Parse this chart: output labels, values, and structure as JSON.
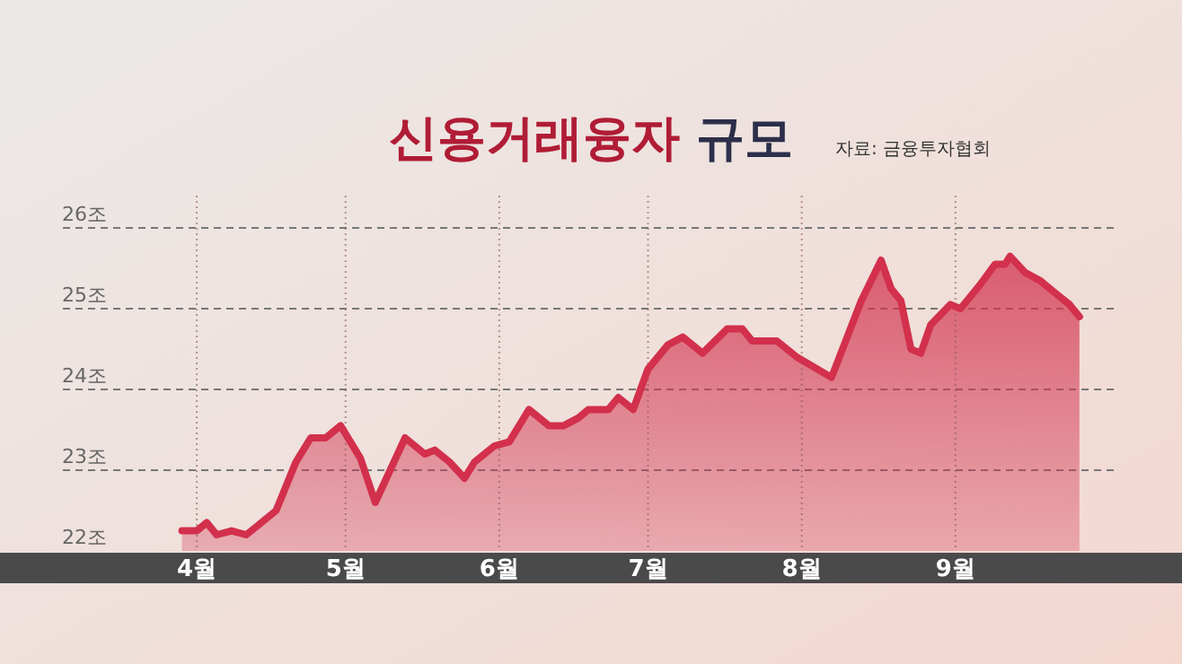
{
  "chart_data": {
    "type": "area",
    "title": "신용거래융자 규모",
    "annotations": [
      "자료: 금융투자협회"
    ],
    "x": [
      "--03-29",
      "--04-01",
      "--04-03",
      "--04-05",
      "--04-08",
      "--04-11",
      "--04-13",
      "--04-17",
      "--04-21",
      "--04-24",
      "--04-27",
      "--04-30",
      "--05-04",
      "--05-07",
      "--05-13",
      "--05-17",
      "--05-19",
      "--05-22",
      "--05-25",
      "--05-27",
      "--05-31",
      "--06-03",
      "--06-07",
      "--06-11",
      "--06-14",
      "--06-17",
      "--06-19",
      "--06-23",
      "--06-25",
      "--06-28",
      "--07-01",
      "--07-05",
      "--07-08",
      "--07-12",
      "--07-17",
      "--07-20",
      "--07-22",
      "--07-27",
      "--07-31",
      "--08-07",
      "--08-13",
      "--08-17",
      "--08-19",
      "--08-21",
      "--08-23",
      "--08-25",
      "--08-27",
      "--08-31",
      "--09-02",
      "--09-06",
      "--09-09",
      "--09-11",
      "--09-12",
      "--09-15",
      "--09-18",
      "--09-21",
      "--09-24",
      "--09-26"
    ],
    "series": [
      {
        "color": "#d2304c",
        "values": [
          22.25,
          22.25,
          22.35,
          22.2,
          22.25,
          22.2,
          22.3,
          22.5,
          23.1,
          23.4,
          23.4,
          23.55,
          23.15,
          22.6,
          23.4,
          23.2,
          23.25,
          23.1,
          22.9,
          23.1,
          23.3,
          23.35,
          23.75,
          23.55,
          23.55,
          23.65,
          23.75,
          23.75,
          23.9,
          23.75,
          24.25,
          24.55,
          24.65,
          24.45,
          24.75,
          24.75,
          24.6,
          24.6,
          24.4,
          24.15,
          25.1,
          25.6,
          25.25,
          25.1,
          24.5,
          24.45,
          24.8,
          25.05,
          25.0,
          25.3,
          25.55,
          25.55,
          25.65,
          25.45,
          25.35,
          25.2,
          25.05,
          24.9
        ]
      }
    ],
    "xlim": [
      "--03-05",
      "--10-04"
    ],
    "xticks": [
      {
        "value": "--04-01",
        "label": "4월"
      },
      {
        "value": "--05-01",
        "label": "5월"
      },
      {
        "value": "--06-01",
        "label": "6월"
      },
      {
        "value": "--07-01",
        "label": "7월"
      },
      {
        "value": "--08-01",
        "label": "8월"
      },
      {
        "value": "--09-01",
        "label": "9월"
      }
    ],
    "ylim": [
      22,
      26.4
    ],
    "yticks": [
      {
        "value": 22,
        "label": "22조"
      },
      {
        "value": 23,
        "label": "23조"
      },
      {
        "value": 24,
        "label": "24조"
      },
      {
        "value": 25,
        "label": "25조"
      },
      {
        "value": 26,
        "label": "26조"
      }
    ],
    "grid": true
  }
}
